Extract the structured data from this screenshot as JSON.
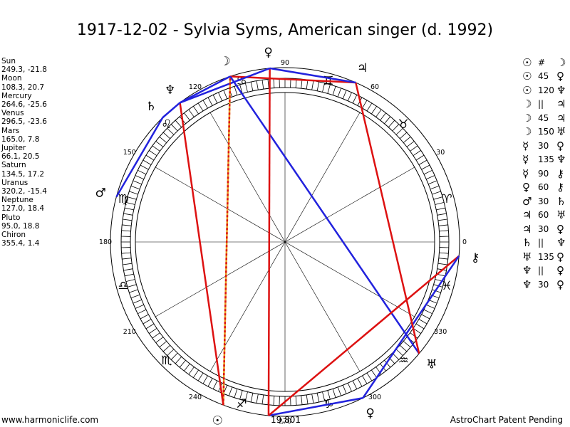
{
  "title": "1917-12-02 - Sylvia Syms, American singer (d. 1992)",
  "positions": [
    {
      "name": "Sun",
      "coords": "249.3, -21.8"
    },
    {
      "name": "Moon",
      "coords": "108.3, 20.7"
    },
    {
      "name": "Mercury",
      "coords": "264.6, -25.6"
    },
    {
      "name": "Venus",
      "coords": "296.5, -23.6"
    },
    {
      "name": "Mars",
      "coords": "165.0, 7.8"
    },
    {
      "name": "Jupiter",
      "coords": "66.1, 20.5"
    },
    {
      "name": "Saturn",
      "coords": "134.5, 17.2"
    },
    {
      "name": "Uranus",
      "coords": "320.2, -15.4"
    },
    {
      "name": "Neptune",
      "coords": "127.0, 18.4"
    },
    {
      "name": "Pluto",
      "coords": "95.0, 18.8"
    },
    {
      "name": "Chiron",
      "coords": "355.4, 1.4"
    }
  ],
  "aspects": [
    {
      "p1": "☉",
      "aspect": "#",
      "p2": "☽"
    },
    {
      "p1": "☉",
      "aspect": "45",
      "p2": "♀"
    },
    {
      "p1": "☉",
      "aspect": "120",
      "p2": "♆"
    },
    {
      "p1": "☽",
      "aspect": "||",
      "p2": "♃"
    },
    {
      "p1": "☽",
      "aspect": "45",
      "p2": "♃"
    },
    {
      "p1": "☽",
      "aspect": "150",
      "p2": "♅"
    },
    {
      "p1": "☿",
      "aspect": "30",
      "p2": "♀"
    },
    {
      "p1": "☿",
      "aspect": "135",
      "p2": "♆"
    },
    {
      "p1": "☿",
      "aspect": "90",
      "p2": "⚷"
    },
    {
      "p1": "♀",
      "aspect": "60",
      "p2": "⚷"
    },
    {
      "p1": "♂",
      "aspect": "30",
      "p2": "♄"
    },
    {
      "p1": "♃",
      "aspect": "60",
      "p2": "♅"
    },
    {
      "p1": "♃",
      "aspect": "30",
      "p2": "♀"
    },
    {
      "p1": "♄",
      "aspect": "||",
      "p2": "♆"
    },
    {
      "p1": "♅",
      "aspect": "135",
      "p2": "♀"
    },
    {
      "p1": "♆",
      "aspect": "||",
      "p2": "♀"
    },
    {
      "p1": "♆",
      "aspect": "30",
      "p2": "♀"
    }
  ],
  "wheel": {
    "degree_labels": [
      "0",
      "30",
      "60",
      "90",
      "120",
      "150",
      "180",
      "210",
      "240",
      "270",
      "300",
      "330"
    ],
    "zodiac": [
      {
        "sign": "aries-icon",
        "glyph": "♈",
        "lon": 15
      },
      {
        "sign": "taurus-icon",
        "glyph": "♉",
        "lon": 45
      },
      {
        "sign": "gemini-icon",
        "glyph": "♊",
        "lon": 75
      },
      {
        "sign": "cancer-icon",
        "glyph": "♋",
        "lon": 105
      },
      {
        "sign": "leo-icon",
        "glyph": "♌",
        "lon": 135
      },
      {
        "sign": "virgo-icon",
        "glyph": "♍",
        "lon": 165
      },
      {
        "sign": "libra-icon",
        "glyph": "♎",
        "lon": 195
      },
      {
        "sign": "scorpio-icon",
        "glyph": "♏",
        "lon": 225
      },
      {
        "sign": "sagittarius-icon",
        "glyph": "♐",
        "lon": 255
      },
      {
        "sign": "capricorn-icon",
        "glyph": "♑",
        "lon": 285
      },
      {
        "sign": "aquarius-icon",
        "glyph": "♒",
        "lon": 315
      },
      {
        "sign": "pisces-icon",
        "glyph": "♓",
        "lon": 345
      }
    ],
    "planets": [
      {
        "id": "sun",
        "glyph": "☉",
        "lon": 249.3,
        "icon": "sun-icon"
      },
      {
        "id": "moon",
        "glyph": "☽",
        "lon": 108.3,
        "icon": "moon-icon"
      },
      {
        "id": "mercury",
        "glyph": "☿",
        "lon": 264.6,
        "icon": "mercury-icon"
      },
      {
        "id": "venus",
        "glyph": "♀",
        "lon": 296.5,
        "icon": "venus-icon"
      },
      {
        "id": "mars",
        "glyph": "♂",
        "lon": 165.0,
        "icon": "mars-icon"
      },
      {
        "id": "jupiter",
        "glyph": "♃",
        "lon": 66.1,
        "icon": "jupiter-icon"
      },
      {
        "id": "saturn",
        "glyph": "♄",
        "lon": 134.5,
        "icon": "saturn-icon"
      },
      {
        "id": "uranus",
        "glyph": "♅",
        "lon": 320.2,
        "icon": "uranus-icon"
      },
      {
        "id": "neptune",
        "glyph": "♆",
        "lon": 127.0,
        "icon": "neptune-icon"
      },
      {
        "id": "pluto",
        "glyph": "♀",
        "lon": 95.0,
        "icon": "pluto-icon"
      },
      {
        "id": "chiron",
        "glyph": "⚷",
        "lon": 355.4,
        "icon": "chiron-icon"
      }
    ],
    "aspect_lines": [
      {
        "a": "sun",
        "b": "moon",
        "color": "#e8a020",
        "style": "solid"
      },
      {
        "a": "sun",
        "b": "neptune",
        "color": "#dd1111",
        "style": "solid"
      },
      {
        "a": "moon",
        "b": "jupiter",
        "color": "#dd1111",
        "style": "solid"
      },
      {
        "a": "moon",
        "b": "uranus",
        "color": "#2222dd",
        "style": "solid"
      },
      {
        "a": "mercury",
        "b": "venus",
        "color": "#2222dd",
        "style": "solid"
      },
      {
        "a": "mercury",
        "b": "chiron",
        "color": "#dd1111",
        "style": "solid"
      },
      {
        "a": "mercury",
        "b": "pluto",
        "color": "#dd1111",
        "style": "solid"
      },
      {
        "a": "venus",
        "b": "chiron",
        "color": "#2222dd",
        "style": "solid"
      },
      {
        "a": "mars",
        "b": "saturn",
        "color": "#2222dd",
        "style": "solid"
      },
      {
        "a": "jupiter",
        "b": "uranus",
        "color": "#dd1111",
        "style": "solid"
      },
      {
        "a": "jupiter",
        "b": "pluto",
        "color": "#2222dd",
        "style": "solid"
      },
      {
        "a": "saturn",
        "b": "neptune",
        "color": "#2222dd",
        "style": "solid"
      },
      {
        "a": "neptune",
        "b": "pluto",
        "color": "#2222dd",
        "style": "solid"
      },
      {
        "a": "neptune",
        "b": "moon",
        "color": "#2222dd",
        "style": "solid"
      },
      {
        "a": "sun",
        "b": "moon",
        "color": "#dd1111",
        "style": "dotted"
      }
    ]
  },
  "footer": {
    "site": "www.harmoniclife.com",
    "counter": "19,801",
    "credit": "AstroChart Patent Pending"
  }
}
